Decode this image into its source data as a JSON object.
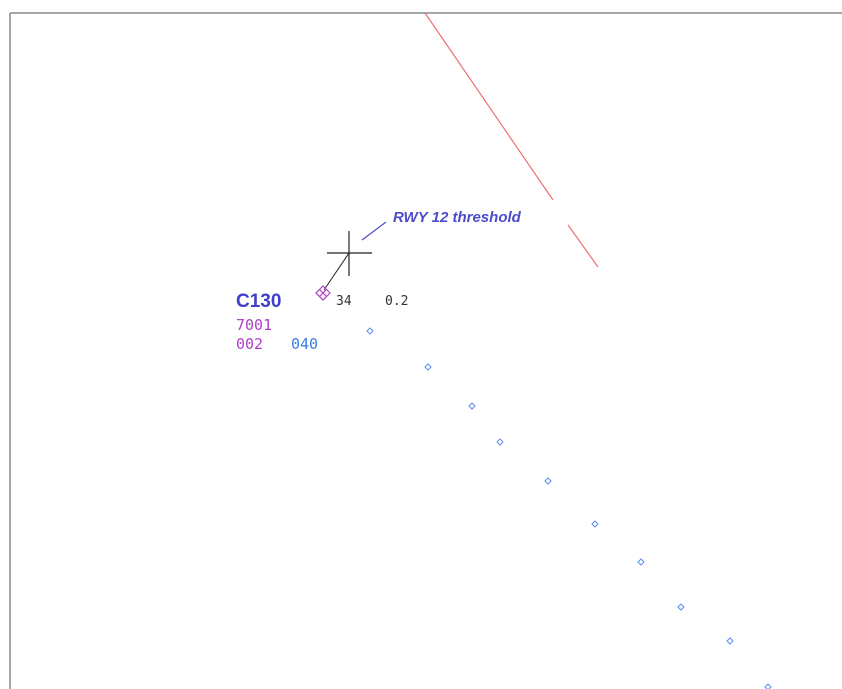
{
  "annotation": "RWY 12 threshold",
  "target": {
    "callsign": "C130",
    "squawk": "7001",
    "altitude": "002",
    "speed": "040",
    "heading": "34",
    "range": "0.2"
  }
}
